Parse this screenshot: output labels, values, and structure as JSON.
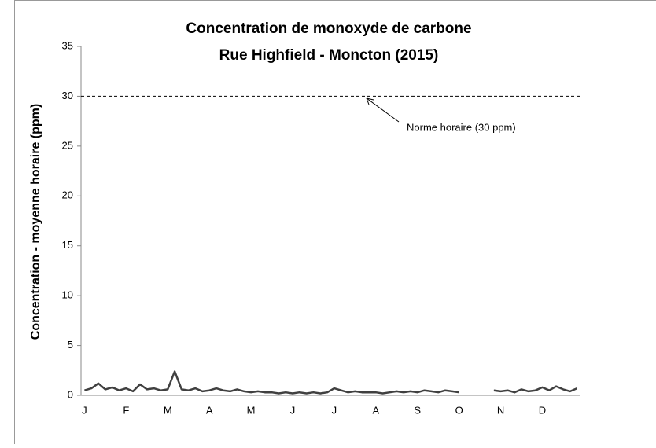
{
  "chart_data": {
    "type": "line",
    "title": "Concentration de monoxyde de carbone",
    "subtitle": "Rue Highfield - Moncton (2015)",
    "y_label": "Concentration - moyenne horaire (ppm)",
    "ylim": [
      0,
      35
    ],
    "yticks": [
      0,
      5,
      10,
      15,
      20,
      25,
      30,
      35
    ],
    "categories": [
      "J",
      null,
      null,
      null,
      null,
      null,
      "F",
      null,
      null,
      null,
      null,
      null,
      "M",
      null,
      null,
      null,
      null,
      null,
      "A",
      null,
      null,
      null,
      null,
      null,
      "M",
      null,
      null,
      null,
      null,
      null,
      "J",
      null,
      null,
      null,
      null,
      null,
      "J",
      null,
      null,
      null,
      null,
      null,
      "A",
      null,
      null,
      null,
      null,
      null,
      "S",
      null,
      null,
      null,
      null,
      null,
      "O",
      null,
      null,
      null,
      null,
      null,
      "N",
      null,
      null,
      null,
      null,
      null,
      "D",
      null,
      null,
      null,
      null,
      null
    ],
    "series": [
      {
        "color": "#404040",
        "values": [
          0.5,
          0.7,
          1.2,
          0.6,
          0.8,
          0.5,
          0.7,
          0.4,
          1.1,
          0.6,
          0.7,
          0.5,
          0.6,
          2.4,
          0.6,
          0.5,
          0.7,
          0.4,
          0.5,
          0.7,
          0.5,
          0.4,
          0.6,
          0.4,
          0.3,
          0.4,
          0.3,
          0.3,
          0.2,
          0.3,
          0.2,
          0.3,
          0.2,
          0.3,
          0.2,
          0.3,
          0.7,
          0.5,
          0.3,
          0.4,
          0.3,
          0.3,
          0.3,
          0.2,
          0.3,
          0.4,
          0.3,
          0.4,
          0.3,
          0.5,
          0.4,
          0.3,
          0.5,
          0.4,
          0.3,
          null,
          null,
          null,
          null,
          0.5,
          0.4,
          0.5,
          0.3,
          0.6,
          0.4,
          0.5,
          0.8,
          0.5,
          0.9,
          0.6,
          0.4,
          0.7
        ]
      }
    ],
    "threshold": {
      "value": 30,
      "label": "Norme horaire (30 ppm)"
    }
  }
}
